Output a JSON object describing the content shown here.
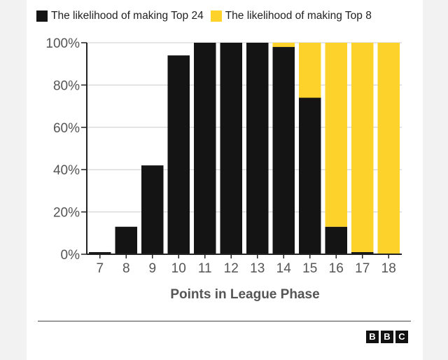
{
  "legend": {
    "top24_label": "The likelihood of making Top 24",
    "top8_label": "The likelihood of making Top 8"
  },
  "colors": {
    "top24": "#141414",
    "top8": "#fdd32b",
    "axis": "#222222",
    "grid": "#cccccc"
  },
  "chart_data": {
    "type": "bar",
    "stacked": true,
    "categories": [
      "7",
      "8",
      "9",
      "10",
      "11",
      "12",
      "13",
      "14",
      "15",
      "16",
      "17",
      "18"
    ],
    "series": [
      {
        "name": "The likelihood of making Top 24",
        "values": [
          1,
          13,
          42,
          94,
          100,
          100,
          100,
          98,
          74,
          13,
          1,
          0
        ]
      },
      {
        "name": "The likelihood of making Top 8",
        "values": [
          0,
          0,
          0,
          0,
          0,
          0,
          0,
          2,
          26,
          87,
          99,
          100
        ]
      }
    ],
    "ylim": [
      0,
      100
    ],
    "yticks": [
      "0%",
      "20%",
      "40%",
      "60%",
      "80%",
      "100%"
    ],
    "xlabel": "Points in League Phase",
    "ylabel": ""
  },
  "branding": {
    "logo_letters": [
      "B",
      "B",
      "C"
    ]
  }
}
